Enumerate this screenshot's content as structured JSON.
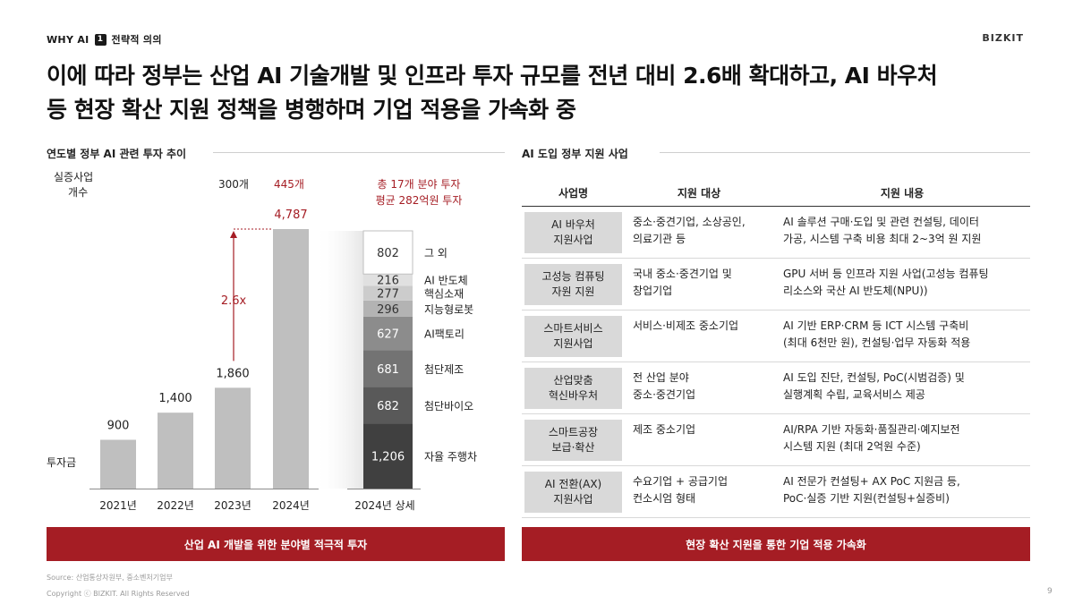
{
  "header": {
    "section": "WHY AI",
    "badge": "1",
    "subsection": "전략적 의의",
    "brand": "BIZKIT"
  },
  "headline": {
    "line1": "이에 따라 정부는 산업 AI 기술개발 및 인프라 투자 규모를 전년 대비 2.6배 확대하고, AI 바우처",
    "line2": "등 현장 확산 지원 정책을 병행하며 기업 적용을 가속화 중"
  },
  "left": {
    "section_title": "연도별 정부 AI 관련 투자 추이",
    "banner": "산업 AI 개발을 위한 분야별 적극적 투자"
  },
  "right": {
    "section_title": "AI 도입 정부 지원 사업",
    "banner": "현장 확산 지원을 통한 기업 적용 가속화",
    "columns": [
      "사업명",
      "지원 대상",
      "지원 내용"
    ],
    "rows": [
      {
        "name": [
          "AI 바우처",
          "지원사업"
        ],
        "target": [
          "중소·중견기업, 소상공인,",
          "의료기관 등"
        ],
        "content": [
          "AI 솔루션 구매·도입 및 관련 컨설팅, 데이터",
          "가공, 시스템 구축 비용 최대 2~3억 원 지원"
        ]
      },
      {
        "name": [
          "고성능 컴퓨팅",
          "자원 지원"
        ],
        "target": [
          "국내 중소·중견기업 및",
          "창업기업"
        ],
        "content": [
          "GPU 서버 등 인프라 지원 사업(고성능 컴퓨팅",
          "리소스와 국산 AI 반도체(NPU))"
        ]
      },
      {
        "name": [
          "스마트서비스",
          "지원사업"
        ],
        "target": [
          "서비스·비제조 중소기업",
          ""
        ],
        "content": [
          "AI 기반 ERP·CRM 등 ICT 시스템 구축비",
          "(최대 6천만 원), 컨설팅·업무 자동화 적용"
        ]
      },
      {
        "name": [
          "산업맞춤",
          "혁신바우처"
        ],
        "target": [
          "전 산업 분야",
          "중소·중견기업"
        ],
        "content": [
          "AI 도입 진단, 컨설팅, PoC(시범검증) 및",
          "실행계획 수립, 교육서비스 제공"
        ]
      },
      {
        "name": [
          "스마트공장",
          "보급·확산"
        ],
        "target": [
          "제조 중소기업",
          ""
        ],
        "content": [
          "AI/RPA 기반 자동화·품질관리·예지보전",
          "시스템 지원 (최대 2억원 수준)"
        ]
      },
      {
        "name": [
          "AI 전환(AX)",
          "지원사업"
        ],
        "target": [
          "수요기업 + 공급기업",
          "컨소시엄 형태"
        ],
        "content": [
          "AI 전문가 컨설팅+ AX PoC 지원금 등,",
          "PoC·실증 기반 지원(컨설팅+실증비)"
        ]
      }
    ]
  },
  "footer": {
    "source": "Source: 산업통상자원부, 중소벤처기업부",
    "copyright": "Copyright ⓒ BIZKIT. All Rights Reserved",
    "page": "9"
  },
  "chart_data": [
    {
      "type": "bar",
      "categories": [
        "2021년",
        "2022년",
        "2023년",
        "2024년"
      ],
      "values": [
        900,
        1400,
        1860,
        4787
      ],
      "value_labels": [
        "900",
        "1,400",
        "1,860",
        "4,787"
      ],
      "ylabel": "투자금",
      "ylim": [
        0,
        4787
      ],
      "bar_color": "#bfbfbf",
      "count_label": "실증사업 개수",
      "counts": {
        "2023년": "300개",
        "2024년": "445개"
      },
      "annotation": "2.6x",
      "annotation_color": "#a51d24"
    },
    {
      "type": "bar",
      "stacked": true,
      "categories": [
        "2024년 상세"
      ],
      "series": [
        {
          "name": "자율 주행차",
          "values": [
            1206
          ],
          "label": "1,206",
          "color": "#404040"
        },
        {
          "name": "첨단바이오",
          "values": [
            682
          ],
          "label": "682",
          "color": "#595959"
        },
        {
          "name": "첨단제조",
          "values": [
            681
          ],
          "label": "681",
          "color": "#737373"
        },
        {
          "name": "AI팩토리",
          "values": [
            627
          ],
          "label": "627",
          "color": "#8c8c8c"
        },
        {
          "name": "지능형로봇",
          "values": [
            296
          ],
          "label": "296",
          "color": "#b3b3b3"
        },
        {
          "name": "핵심소재",
          "values": [
            277
          ],
          "label": "277",
          "color": "#cccccc"
        },
        {
          "name": "AI 반도체",
          "values": [
            216
          ],
          "label": "216",
          "color": "#e0e0e0"
        },
        {
          "name": "그 외",
          "values": [
            802
          ],
          "label": "802",
          "color": "#ffffff"
        }
      ],
      "summary": [
        "총 17개 분야 투자",
        "평균 282억원 투자"
      ]
    }
  ]
}
